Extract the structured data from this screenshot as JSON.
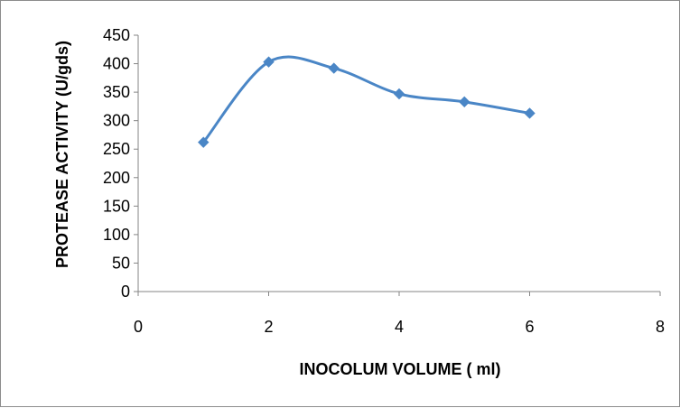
{
  "chart_data": {
    "type": "line",
    "title": "",
    "xlabel": "INOCOLUM VOLUME ( ml)",
    "ylabel": "PROTEASE ACTIVITY (U/gds)",
    "xlim": [
      0,
      8
    ],
    "ylim": [
      0,
      450
    ],
    "x_ticks": [
      "0",
      "2",
      "4",
      "6",
      "8"
    ],
    "y_ticks": [
      "0",
      "50",
      "100",
      "150",
      "200",
      "250",
      "300",
      "350",
      "400",
      "450"
    ],
    "grid": false,
    "legend": "none",
    "smoothed": true,
    "marker": "diamond",
    "series": [
      {
        "color": "#4a86c6",
        "x": [
          1,
          2,
          3,
          4,
          5,
          6
        ],
        "y": [
          262,
          403,
          392,
          347,
          333,
          313
        ]
      }
    ]
  }
}
